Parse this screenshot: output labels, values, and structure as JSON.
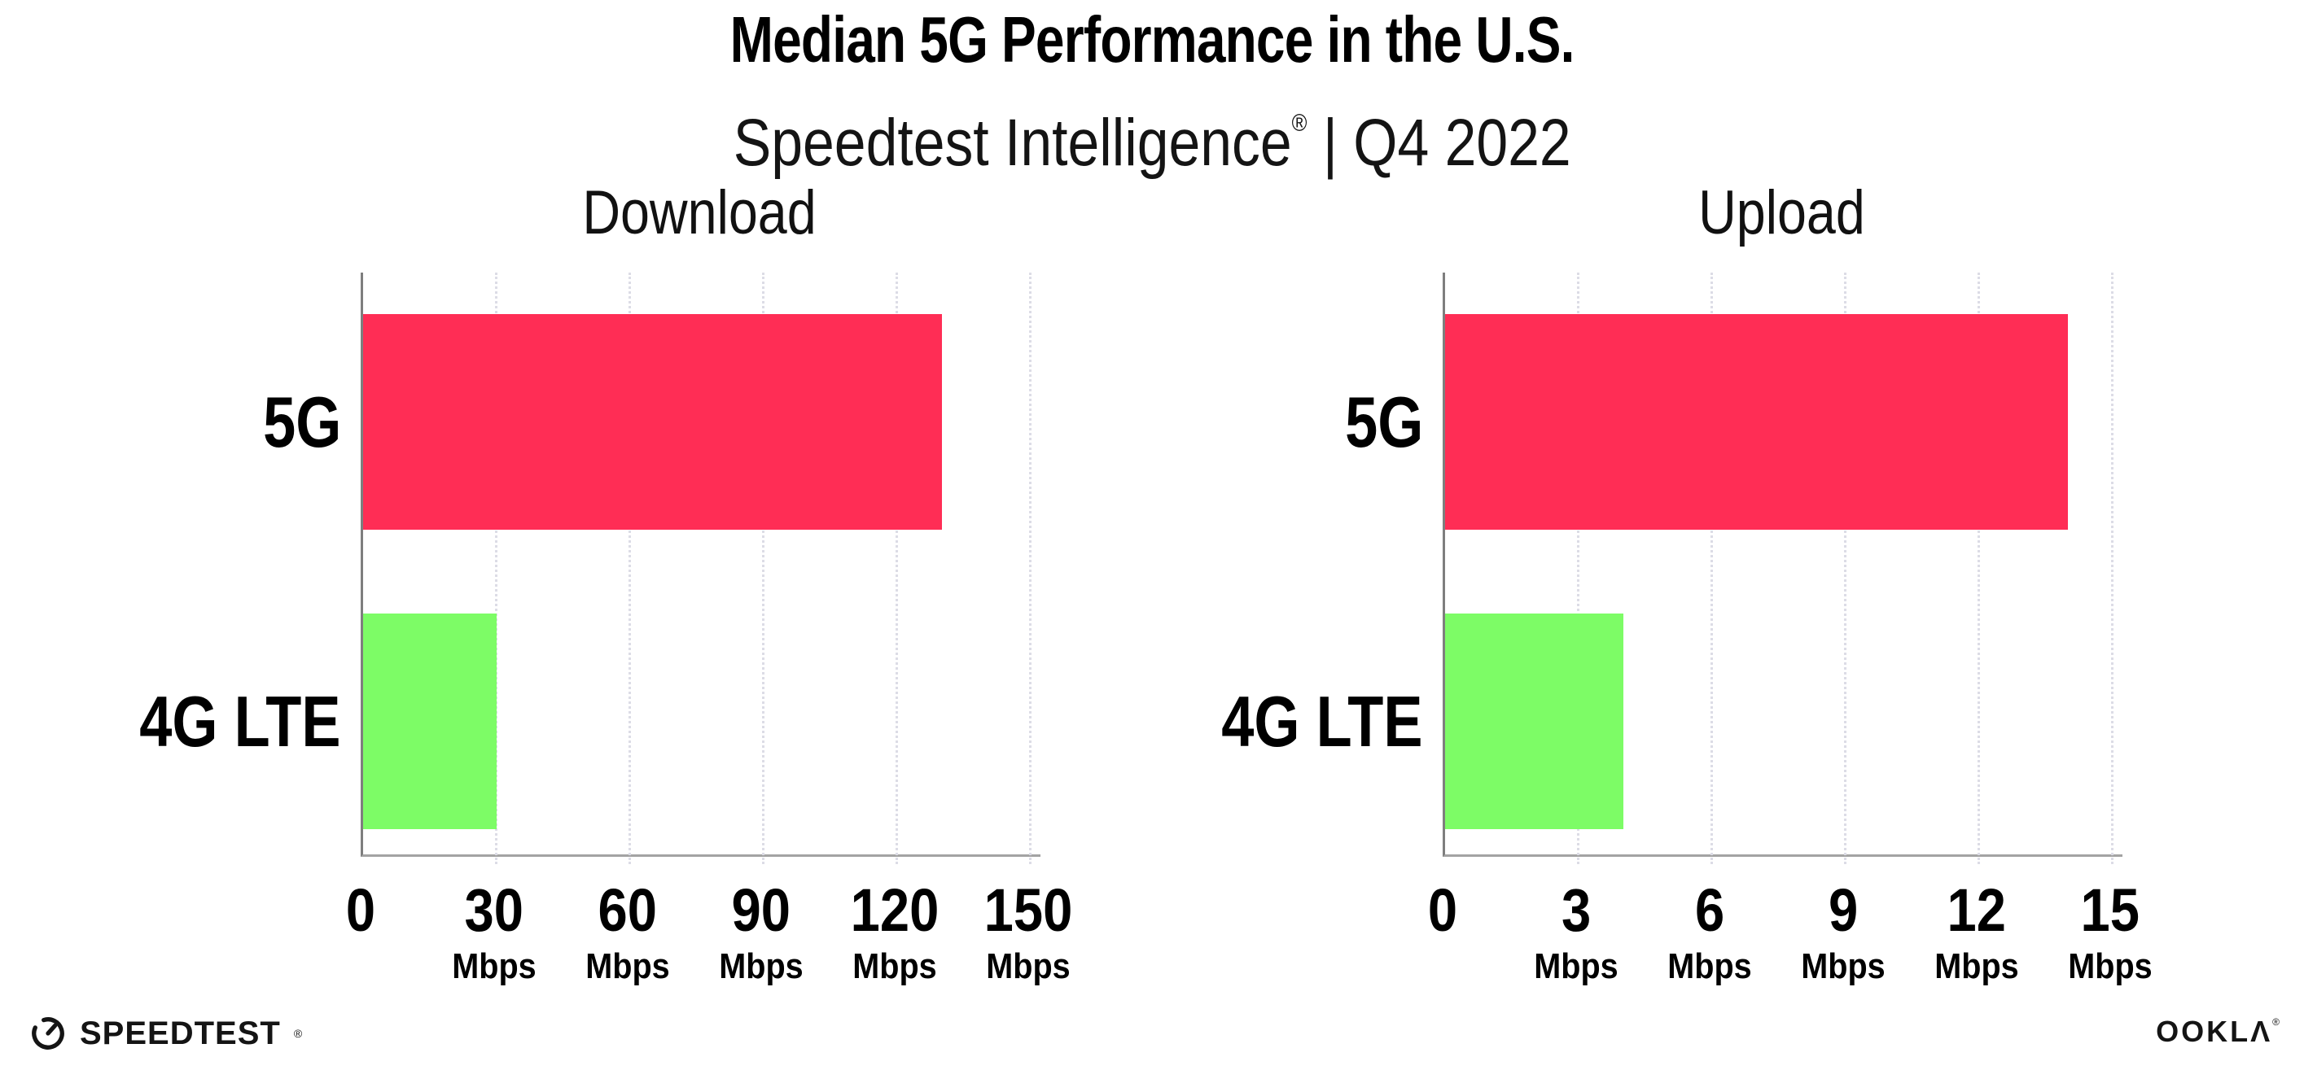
{
  "header": {
    "title": "Median 5G Performance in the U.S.",
    "subtitle_brand": "Speedtest Intelligence",
    "subtitle_reg": "®",
    "subtitle_rest": " | Q4 2022"
  },
  "footer": {
    "speedtest_label": "SPEEDTEST",
    "speedtest_reg": "®",
    "speedtest_icon": "gauge-icon",
    "ookla_label": "OOKLΛ",
    "ookla_reg": "®"
  },
  "colors": {
    "bar_5g": "#FF2D55",
    "bar_4g_lte": "#7DFC66",
    "gridline": "#DCDCE6",
    "axis_left": "#7E7E7E",
    "axis_bottom": "#A3A3A3",
    "text": "#000000"
  },
  "chart_data": {
    "type": "bar",
    "orientation": "horizontal",
    "categories": [
      "5G",
      "4G LTE"
    ],
    "unit": "Mbps",
    "grid": "vertical-dotted",
    "legend": "none",
    "series_colors": {
      "5G": "#FF2D55",
      "4G LTE": "#7DFC66"
    },
    "charts": [
      {
        "title": "Download",
        "values": [
          130,
          30
        ],
        "xlim": [
          0,
          150
        ],
        "ticks": [
          0,
          30,
          60,
          90,
          120,
          150
        ]
      },
      {
        "title": "Upload",
        "values": [
          14,
          4
        ],
        "xlim": [
          0,
          15
        ],
        "ticks": [
          0,
          3,
          6,
          9,
          12,
          15
        ]
      }
    ]
  }
}
